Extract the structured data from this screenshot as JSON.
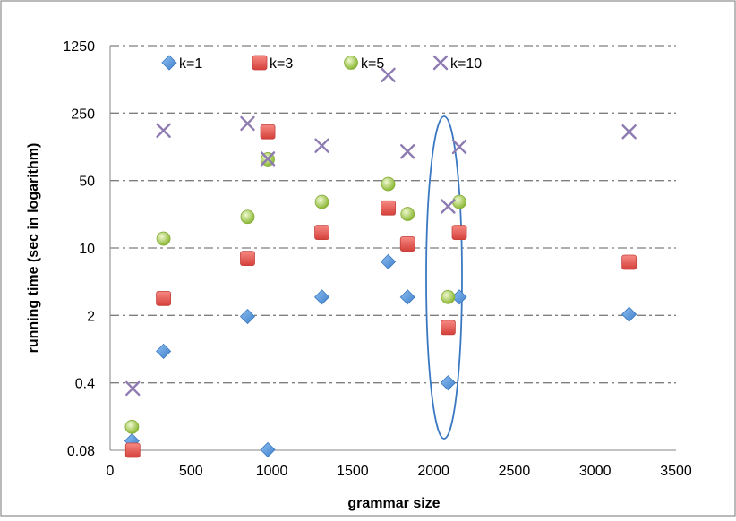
{
  "chart_data": {
    "type": "scatter",
    "title": "",
    "xlabel": "grammar size",
    "ylabel": "running time (sec in logarithm)",
    "xlim": [
      0,
      3500
    ],
    "ylim": [
      0.08,
      1250
    ],
    "yscale": "log",
    "grid": true,
    "legend_position": "top",
    "x_ticks": [
      0,
      500,
      1000,
      1500,
      2000,
      2500,
      3000,
      3500
    ],
    "x_tick_labels": [
      "0",
      "500",
      "1000",
      "1500",
      "2000",
      "2500",
      "3000",
      "3500"
    ],
    "y_ticks": [
      0.08,
      0.4,
      2,
      10,
      50,
      250,
      1250
    ],
    "y_tick_labels": [
      "0.08",
      "0.4",
      "2",
      "10",
      "50",
      "250",
      "1250"
    ],
    "series": [
      {
        "name": "k=1",
        "marker": "diamond",
        "color": "#4f8fd8",
        "points": [
          [
            135,
            0.1
          ],
          [
            330,
            0.85
          ],
          [
            850,
            1.95
          ],
          [
            975,
            0.081
          ],
          [
            1310,
            3.1
          ],
          [
            1720,
            7.2
          ],
          [
            1840,
            3.1
          ],
          [
            2090,
            0.4
          ],
          [
            2160,
            3.1
          ],
          [
            3210,
            2.05
          ]
        ]
      },
      {
        "name": "k=3",
        "marker": "square",
        "color": "#e8504a",
        "points": [
          [
            140,
            0.08
          ],
          [
            330,
            3.0
          ],
          [
            850,
            7.8
          ],
          [
            975,
            160
          ],
          [
            1310,
            14.5
          ],
          [
            1720,
            26
          ],
          [
            1840,
            11
          ],
          [
            2090,
            1.5
          ],
          [
            2160,
            14.5
          ],
          [
            3210,
            7.1
          ]
        ]
      },
      {
        "name": "k=5",
        "marker": "circle",
        "color": "#a8cf4a",
        "points": [
          [
            135,
            0.14
          ],
          [
            330,
            12.5
          ],
          [
            850,
            21
          ],
          [
            975,
            83
          ],
          [
            1310,
            30
          ],
          [
            1720,
            46
          ],
          [
            1840,
            22.5
          ],
          [
            2090,
            3.1
          ],
          [
            2160,
            30
          ]
        ]
      },
      {
        "name": "k=10",
        "marker": "x",
        "color": "#8d7bb2",
        "points": [
          [
            140,
            0.35
          ],
          [
            330,
            165
          ],
          [
            850,
            195
          ],
          [
            975,
            84
          ],
          [
            1310,
            115
          ],
          [
            1720,
            620
          ],
          [
            1840,
            100
          ],
          [
            2090,
            27
          ],
          [
            2160,
            112
          ],
          [
            3210,
            160
          ]
        ]
      }
    ]
  }
}
